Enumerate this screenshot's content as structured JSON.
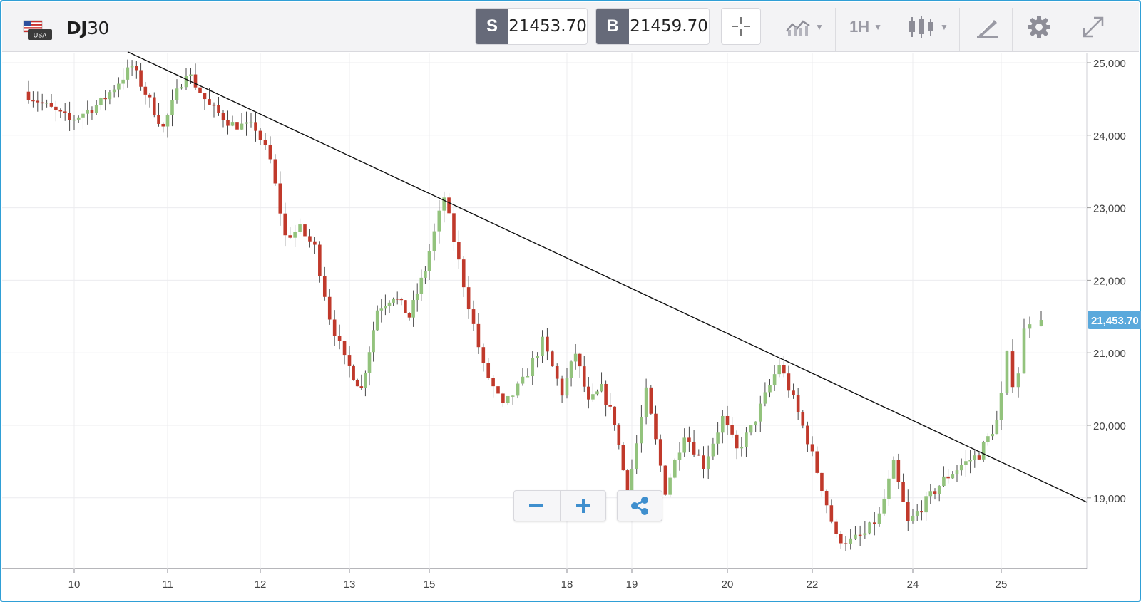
{
  "toolbar": {
    "symbol_bold": "DJ",
    "symbol_rest": "30",
    "flag_label": "USA",
    "sell_tag": "S",
    "sell_price": "21453.70",
    "buy_tag": "B",
    "buy_price": "21459.70",
    "timeframe": "1H",
    "icons": [
      "crosshair-icon",
      "indicators-icon",
      "candlestick-icon",
      "drawing-tool-icon",
      "gear-icon",
      "expand-icon"
    ]
  },
  "zoom": {
    "icons": [
      "zoom-out-icon",
      "zoom-in-icon",
      "share-icon"
    ]
  },
  "colors": {
    "up": "#93c37d",
    "down": "#c0392b",
    "price_tag": "#5aa9dc",
    "trendline": "#111111",
    "border": "#2f9fd6"
  },
  "chart_data": {
    "type": "candlestick",
    "interval": "1H",
    "symbol": "DJ30",
    "x_tick_labels": [
      "10",
      "11",
      "12",
      "13",
      "15",
      "18",
      "19",
      "20",
      "22",
      "24",
      "25"
    ],
    "y_tick_labels": [
      "25,000",
      "24,000",
      "23,000",
      "22,000",
      "21,000",
      "20,000",
      "19,000"
    ],
    "ylim": [
      18050,
      25150
    ],
    "current_price_label": "21,453.70",
    "current_price": 21453.7,
    "grid": true,
    "trendline": {
      "start": {
        "x": "10",
        "y": 25150
      },
      "end": {
        "x": "25",
        "y": 18940
      }
    },
    "close_path": [
      [
        "9",
        24600
      ],
      [
        "10",
        24200
      ],
      [
        "10",
        24450
      ],
      [
        "10",
        24950
      ],
      [
        "11",
        24100
      ],
      [
        "11",
        24900
      ],
      [
        "11",
        24400
      ],
      [
        "11",
        24150
      ],
      [
        "12",
        24100
      ],
      [
        "12",
        23650
      ],
      [
        "12",
        22600
      ],
      [
        "12",
        22700
      ],
      [
        "12",
        22450
      ],
      [
        "12",
        21500
      ],
      [
        "13",
        20900
      ],
      [
        "13",
        20500
      ],
      [
        "13",
        21600
      ],
      [
        "13",
        21800
      ],
      [
        "13",
        21500
      ],
      [
        "15",
        22150
      ],
      [
        "15",
        23150
      ],
      [
        "15",
        21950
      ],
      [
        "15",
        20800
      ],
      [
        "15",
        20250
      ],
      [
        "15",
        20600
      ],
      [
        "15",
        21150
      ],
      [
        "18",
        20450
      ],
      [
        "18",
        21000
      ],
      [
        "18",
        20300
      ],
      [
        "18",
        20500
      ],
      [
        "18",
        20050
      ],
      [
        "19",
        19050
      ],
      [
        "19",
        20450
      ],
      [
        "19",
        19100
      ],
      [
        "19",
        19900
      ],
      [
        "19",
        19450
      ],
      [
        "20",
        20100
      ],
      [
        "20",
        19650
      ],
      [
        "20",
        19950
      ],
      [
        "20",
        20400
      ],
      [
        "20",
        20850
      ],
      [
        "20",
        20350
      ],
      [
        "22",
        19800
      ],
      [
        "22",
        19150
      ],
      [
        "22",
        18450
      ],
      [
        "22",
        18400
      ],
      [
        "22",
        18500
      ],
      [
        "22",
        18750
      ],
      [
        "22",
        19450
      ],
      [
        "24",
        18650
      ],
      [
        "24",
        18950
      ],
      [
        "24",
        19250
      ],
      [
        "24",
        19450
      ],
      [
        "24",
        19600
      ],
      [
        "25",
        20050
      ],
      [
        "25",
        20400
      ],
      [
        "25",
        20950
      ],
      [
        "25",
        20600
      ],
      [
        "25",
        20750
      ],
      [
        "25",
        21300
      ],
      [
        "25",
        21453.7
      ]
    ]
  }
}
